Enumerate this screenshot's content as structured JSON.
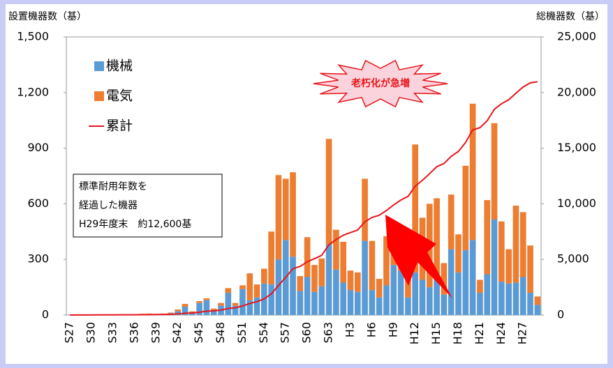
{
  "chart_data": {
    "type": "bar",
    "stacked": true,
    "grid": false,
    "legend": "top-left",
    "y_label": "設置機器数（基）",
    "y2_label": "総機器数（基）",
    "annotation": "老朽化が急増",
    "note": [
      "標準耐用年数を",
      "経過した機器",
      "H29年度末　約12,600基"
    ],
    "categories": [
      "S27",
      null,
      null,
      "S30",
      null,
      null,
      "S33",
      null,
      null,
      "S36",
      null,
      null,
      "S39",
      null,
      null,
      "S42",
      null,
      null,
      "S45",
      null,
      null,
      "S48",
      null,
      null,
      "S51",
      null,
      null,
      "S54",
      null,
      null,
      "S57",
      null,
      null,
      "S60",
      null,
      null,
      "S63",
      null,
      null,
      "H3",
      null,
      null,
      "H6",
      null,
      null,
      "H9",
      null,
      null,
      "H12",
      null,
      null,
      "H15",
      null,
      null,
      "H18",
      null,
      null,
      "H21",
      null,
      null,
      "H24",
      null,
      null,
      "H27",
      null,
      null
    ],
    "ylim": [
      0,
      1500
    ],
    "yticks": [
      0,
      300,
      600,
      900,
      {
        "value": 1200,
        "label": "1,200"
      },
      {
        "value": 1500,
        "label": "1,500"
      }
    ],
    "y2lim": [
      0,
      25000
    ],
    "y2ticks": [
      0,
      {
        "value": 5000,
        "label": "5,000"
      },
      {
        "value": 10000,
        "label": "10,000"
      },
      {
        "value": 15000,
        "label": "15,000"
      },
      {
        "value": 20000,
        "label": "20,000"
      },
      {
        "value": 25000,
        "label": "25,000"
      }
    ],
    "series": [
      {
        "name": "機械",
        "color": "#5b9bd5",
        "values": [
          2,
          2,
          2,
          3,
          3,
          2,
          3,
          3,
          3,
          3,
          5,
          5,
          4,
          5,
          10,
          20,
          45,
          15,
          65,
          80,
          25,
          50,
          120,
          50,
          140,
          80,
          95,
          170,
          165,
          300,
          405,
          315,
          130,
          205,
          125,
          155,
          380,
          245,
          175,
          135,
          125,
          400,
          135,
          95,
          160,
          270,
          240,
          95,
          230,
          190,
          150,
          200,
          110,
          355,
          230,
          350,
          405,
          120,
          220,
          515,
          180,
          170,
          175,
          205,
          120,
          55
        ]
      },
      {
        "name": "電気",
        "color": "#ed7d31",
        "values": [
          0,
          0,
          0,
          0,
          0,
          0,
          0,
          0,
          0,
          0,
          2,
          3,
          2,
          3,
          3,
          10,
          15,
          5,
          10,
          10,
          10,
          15,
          25,
          15,
          20,
          145,
          70,
          80,
          285,
          455,
          330,
          455,
          80,
          215,
          145,
          150,
          570,
          215,
          220,
          105,
          105,
          335,
          265,
          100,
          265,
          230,
          200,
          230,
          690,
          335,
          450,
          430,
          170,
          295,
          205,
          455,
          735,
          70,
          400,
          520,
          325,
          185,
          415,
          350,
          255,
          45
        ]
      },
      {
        "name": "累計",
        "color": "#e8141b",
        "axis": "y2",
        "values": [
          2,
          4,
          6,
          9,
          12,
          14,
          17,
          20,
          23,
          26,
          33,
          41,
          47,
          55,
          68,
          98,
          158,
          178,
          253,
          343,
          378,
          443,
          588,
          653,
          813,
          1038,
          1203,
          1453,
          1903,
          2658,
          3393,
          4163,
          4373,
          4793,
          5063,
          5368,
          6318,
          6778,
          7173,
          7413,
          7643,
          8378,
          8778,
          8973,
          9398,
          9898,
          10338,
          10663,
          11583,
          12108,
          12708,
          13338,
          13618,
          14268,
          14703,
          15508,
          16648,
          16838,
          17458,
          18493,
          18998,
          19353,
          19943,
          20498,
          20873,
          20973
        ]
      }
    ]
  }
}
